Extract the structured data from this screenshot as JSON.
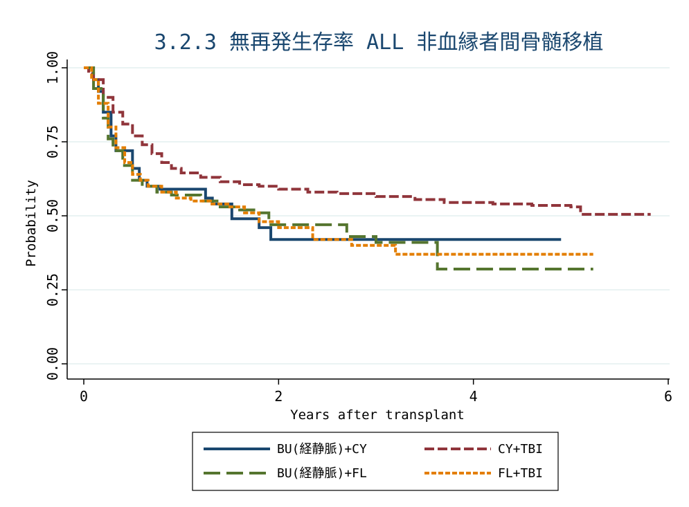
{
  "chart_data": {
    "type": "line",
    "title": "3.2.3 無再発生存率 ALL 非血縁者間骨髄移植",
    "xlabel": "Years after transplant",
    "ylabel": "Probability",
    "xlim": [
      0,
      6
    ],
    "ylim": [
      0,
      1
    ],
    "x_ticks": [
      0,
      2,
      4,
      6
    ],
    "x_tick_labels": [
      "0",
      "2",
      "4",
      "6"
    ],
    "y_ticks": [
      0,
      0.25,
      0.5,
      0.75,
      1
    ],
    "y_tick_labels": [
      "0.00",
      "0.25",
      "0.50",
      "0.75",
      "1.00"
    ],
    "grid": true,
    "legend_position": "bottom",
    "series": [
      {
        "name": "BU(経静脈)+CY",
        "color": "#1a476f",
        "dash": "solid",
        "x": [
          0,
          0.1,
          0.15,
          0.2,
          0.28,
          0.33,
          0.38,
          0.5,
          0.57,
          0.65,
          0.78,
          0.9,
          1.05,
          1.25,
          1.32,
          1.45,
          1.52,
          1.62,
          1.8,
          1.92,
          2.6,
          3.0,
          4.9
        ],
        "y": [
          1,
          0.96,
          0.92,
          0.85,
          0.77,
          0.72,
          0.72,
          0.66,
          0.62,
          0.6,
          0.59,
          0.59,
          0.59,
          0.56,
          0.54,
          0.54,
          0.49,
          0.49,
          0.46,
          0.42,
          0.42,
          0.42,
          0.42
        ]
      },
      {
        "name": "CY+TBI",
        "color": "#90353b",
        "dash": "dashed",
        "x": [
          0,
          0.05,
          0.1,
          0.2,
          0.3,
          0.4,
          0.5,
          0.6,
          0.7,
          0.8,
          0.9,
          1.0,
          1.2,
          1.4,
          1.6,
          1.8,
          2.0,
          2.3,
          2.6,
          3.0,
          3.4,
          3.7,
          4.2,
          4.6,
          5.0,
          5.1,
          5.82
        ],
        "y": [
          1,
          0.98,
          0.96,
          0.9,
          0.85,
          0.81,
          0.77,
          0.74,
          0.71,
          0.68,
          0.66,
          0.645,
          0.63,
          0.615,
          0.605,
          0.6,
          0.59,
          0.58,
          0.575,
          0.565,
          0.555,
          0.545,
          0.54,
          0.535,
          0.53,
          0.505,
          0.505
        ]
      },
      {
        "name": "BU(経静脈)+FL",
        "color": "#55752f",
        "dash": "long-dash",
        "x": [
          0,
          0.1,
          0.2,
          0.25,
          0.3,
          0.4,
          0.5,
          0.6,
          0.75,
          0.9,
          1.0,
          1.2,
          1.4,
          1.6,
          1.8,
          1.9,
          2.1,
          2.6,
          2.7,
          3.0,
          3.4,
          3.63,
          4.0,
          5.23
        ],
        "y": [
          1,
          0.93,
          0.83,
          0.76,
          0.72,
          0.67,
          0.62,
          0.6,
          0.58,
          0.57,
          0.57,
          0.55,
          0.53,
          0.52,
          0.51,
          0.47,
          0.47,
          0.47,
          0.43,
          0.41,
          0.41,
          0.32,
          0.32,
          0.32
        ]
      },
      {
        "name": "FL+TBI",
        "color": "#e37e00",
        "dash": "dotted-dash",
        "x": [
          0,
          0.08,
          0.15,
          0.25,
          0.33,
          0.42,
          0.5,
          0.58,
          0.66,
          0.8,
          0.95,
          1.1,
          1.3,
          1.5,
          1.65,
          1.8,
          2.0,
          2.35,
          2.75,
          3.2,
          3.4,
          4.0,
          5.23
        ],
        "y": [
          1,
          0.96,
          0.88,
          0.8,
          0.73,
          0.68,
          0.64,
          0.62,
          0.6,
          0.58,
          0.56,
          0.55,
          0.54,
          0.53,
          0.51,
          0.48,
          0.46,
          0.42,
          0.4,
          0.37,
          0.37,
          0.37,
          0.37
        ]
      }
    ]
  }
}
